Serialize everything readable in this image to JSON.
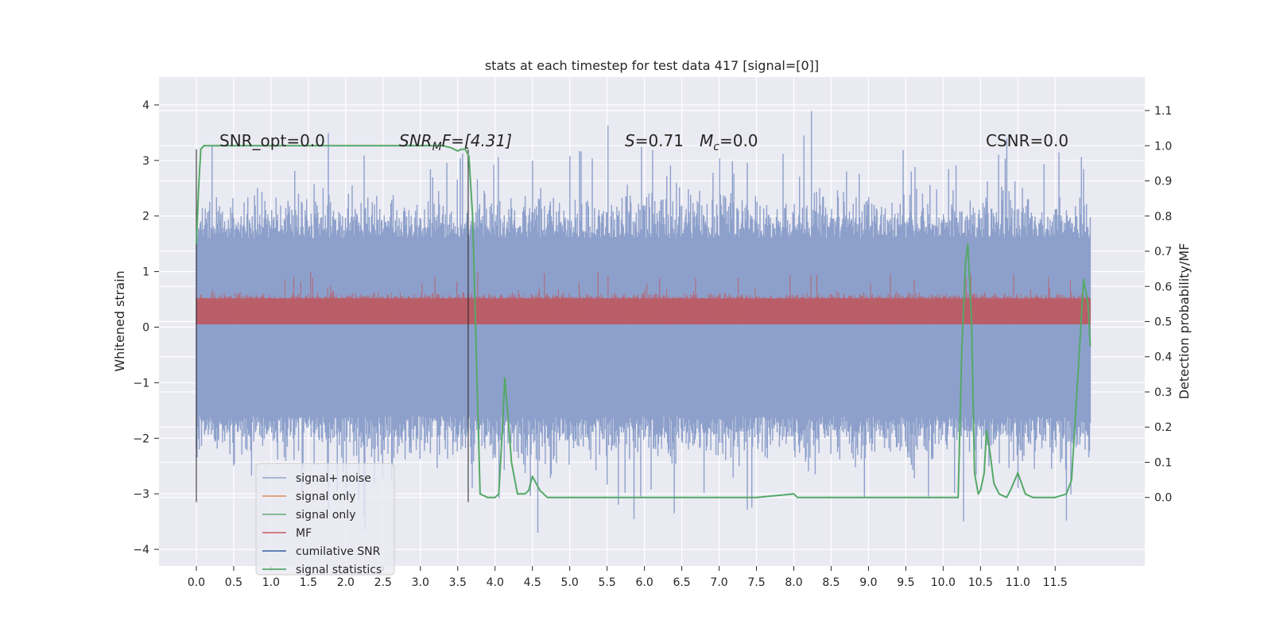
{
  "chart_data": {
    "type": "line",
    "title": "stats at each timestep for test data 417 [signal=[0]]",
    "xlabel": "",
    "ylabel": "Whitened strain",
    "y2label": "Detection probability/MF",
    "xlim": [
      -0.5,
      12.7
    ],
    "ylim": [
      -4.3,
      4.5
    ],
    "y2lim": [
      -0.195,
      1.195
    ],
    "xticks": [
      "0.0",
      "0.5",
      "1.0",
      "1.5",
      "2.0",
      "2.5",
      "3.0",
      "3.5",
      "4.0",
      "4.5",
      "5.0",
      "5.5",
      "6.0",
      "6.5",
      "7.0",
      "7.5",
      "8.0",
      "8.5",
      "9.0",
      "9.5",
      "10.0",
      "10.5",
      "11.0",
      "11.5"
    ],
    "yticks": [
      "4",
      "3",
      "2",
      "1",
      "0",
      "−1",
      "−2",
      "−3",
      "−4"
    ],
    "y2ticks": [
      "1.1",
      "1.0",
      "0.9",
      "0.8",
      "0.7",
      "0.6",
      "0.5",
      "0.4",
      "0.3",
      "0.2",
      "0.1",
      "0.0"
    ],
    "grid": true,
    "legend_position": "lower-left",
    "annotations": {
      "snr_opt": "SNR_opt=0.0",
      "snr_mf_base": "SNR",
      "snr_mf_sub": "M",
      "snr_mf_rest": "F=[4.31]",
      "s_base": "S",
      "s_rest": "=0.71",
      "mc_base": "M",
      "mc_sub": "c",
      "mc_rest": "=0.0",
      "csnr": "CSNR=0.0"
    },
    "vertical_markers_x": [
      0.0,
      3.64
    ],
    "series": [
      {
        "name": "signal+ noise",
        "color": "#8da0cb",
        "description_band": "noise envelope approx ±2.2 with peaks to ±4",
        "envelope_core": 1.25
      },
      {
        "name": "signal only",
        "color": "#dd8452"
      },
      {
        "name": "signal only",
        "color": "#55a868"
      },
      {
        "name": "MF",
        "color": "#c44e52",
        "band": [
          0.0,
          0.6
        ]
      },
      {
        "name": "cumilative SNR",
        "color": "#4c72b0"
      },
      {
        "name": "signal statistics",
        "color": "#55a868",
        "x": [
          0.0,
          0.03,
          0.06,
          0.1,
          0.2,
          0.5,
          1.0,
          1.5,
          2.0,
          2.5,
          3.0,
          3.3,
          3.4,
          3.45,
          3.5,
          3.55,
          3.6,
          3.65,
          3.7,
          3.75,
          3.8,
          3.9,
          4.0,
          4.05,
          4.1,
          4.13,
          4.17,
          4.22,
          4.3,
          4.4,
          4.45,
          4.5,
          4.6,
          4.7,
          5.0,
          6.0,
          7.0,
          7.5,
          8.0,
          8.05,
          8.1,
          8.2,
          9.0,
          9.5,
          10.0,
          10.2,
          10.25,
          10.3,
          10.33,
          10.38,
          10.42,
          10.47,
          10.5,
          10.55,
          10.58,
          10.62,
          10.68,
          10.75,
          10.85,
          10.9,
          11.0,
          11.05,
          11.1,
          11.2,
          11.5,
          11.65,
          11.72,
          11.82,
          11.88,
          11.94,
          11.97
        ],
        "values": [
          0.72,
          0.88,
          0.99,
          1.0,
          1.0,
          1.0,
          1.0,
          1.0,
          1.0,
          1.0,
          1.0,
          1.0,
          0.995,
          0.99,
          0.985,
          0.99,
          0.99,
          0.97,
          0.8,
          0.4,
          0.01,
          0.0,
          0.0,
          0.01,
          0.2,
          0.34,
          0.24,
          0.1,
          0.01,
          0.01,
          0.02,
          0.06,
          0.02,
          0.0,
          0.0,
          0.0,
          0.0,
          0.0,
          0.01,
          0.0,
          0.0,
          0.0,
          0.0,
          0.0,
          0.0,
          0.0,
          0.42,
          0.67,
          0.72,
          0.5,
          0.07,
          0.01,
          0.02,
          0.07,
          0.19,
          0.14,
          0.04,
          0.01,
          0.0,
          0.02,
          0.07,
          0.04,
          0.01,
          0.0,
          0.0,
          0.01,
          0.05,
          0.4,
          0.62,
          0.55,
          0.43
        ]
      }
    ]
  }
}
